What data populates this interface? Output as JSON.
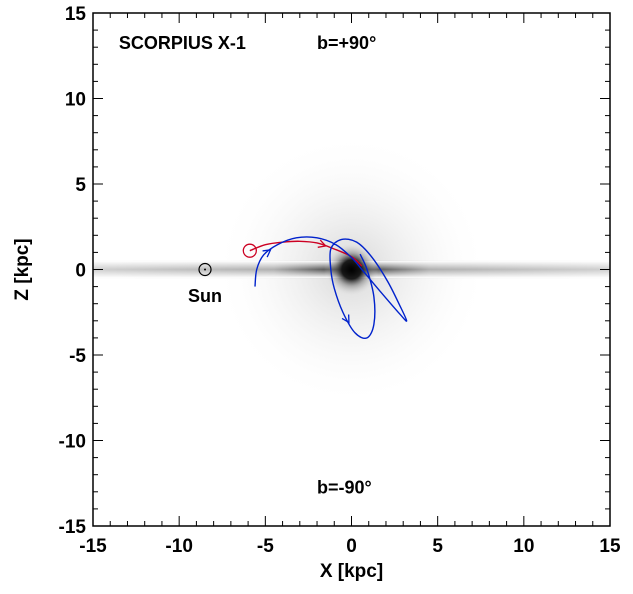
{
  "chart_data": {
    "type": "line",
    "xlabel": "X [kpc]",
    "ylabel": "Z [kpc]",
    "xlim": [
      -15,
      15
    ],
    "ylim": [
      -15,
      15
    ],
    "xticks": [
      "-15",
      "-10",
      "-5",
      "0",
      "5",
      "10",
      "15"
    ],
    "yticks": [
      "-15",
      "-10",
      "-5",
      "0",
      "5",
      "10",
      "15"
    ],
    "grid": false,
    "annotations": {
      "object": "SCORPIUS X-1",
      "top_direction": "b=+90°",
      "bottom_direction": "b=-90°",
      "sun_label": "Sun"
    },
    "sun": {
      "x": -8.5,
      "y": 0
    },
    "source_position": {
      "x": -5.9,
      "y": 1.1
    },
    "series": [
      {
        "color": "#cc0022",
        "points": [
          [
            -5.9,
            1.1
          ],
          [
            -5.0,
            1.45
          ],
          [
            -4.0,
            1.6
          ],
          [
            -3.0,
            1.65
          ],
          [
            -2.0,
            1.55
          ],
          [
            -1.0,
            1.2
          ],
          [
            0.0,
            0.75
          ],
          [
            0.6,
            0.2
          ]
        ]
      },
      {
        "color": "#0022cc",
        "points": [
          [
            -5.6,
            -1.0
          ],
          [
            -5.5,
            0.0
          ],
          [
            -5.1,
            0.85
          ],
          [
            -4.3,
            1.45
          ],
          [
            -3.2,
            1.85
          ],
          [
            -2.0,
            1.85
          ],
          [
            -0.9,
            1.45
          ],
          [
            0.0,
            0.7
          ],
          [
            0.6,
            0.0
          ],
          [
            1.6,
            -1.2
          ],
          [
            2.8,
            -2.6
          ],
          [
            3.2,
            -3.0
          ],
          [
            2.8,
            -2.1
          ],
          [
            2.1,
            -0.7
          ],
          [
            1.2,
            0.7
          ],
          [
            0.3,
            1.6
          ],
          [
            -0.6,
            1.75
          ],
          [
            -1.2,
            1.2
          ],
          [
            -1.2,
            0.0
          ],
          [
            -1.0,
            -1.1
          ],
          [
            -0.5,
            -2.5
          ],
          [
            0.2,
            -3.7
          ],
          [
            0.9,
            -4.0
          ],
          [
            1.3,
            -3.2
          ],
          [
            1.3,
            -1.6
          ],
          [
            0.9,
            0.0
          ],
          [
            0.5,
            0.9
          ]
        ]
      }
    ]
  }
}
